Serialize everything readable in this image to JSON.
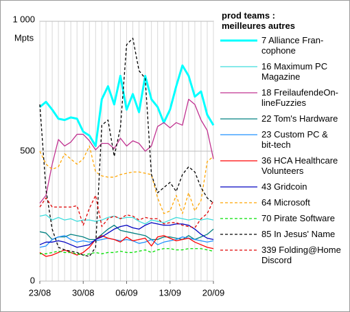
{
  "chart_data": {
    "type": "line",
    "legend_title": "prod teams :\nmeilleures autres",
    "y_unit": "Mpts",
    "categories": [
      "23/08",
      null,
      null,
      null,
      null,
      null,
      null,
      "30/08",
      null,
      null,
      null,
      null,
      null,
      null,
      "06/09",
      null,
      null,
      null,
      null,
      null,
      null,
      "13/09",
      null,
      null,
      null,
      null,
      null,
      null,
      "20/09"
    ],
    "ylim": [
      0,
      1000
    ],
    "yticks": [
      0,
      500,
      {
        "value": 1000,
        "label": "1 000"
      }
    ],
    "grid": true,
    "legend": "right",
    "series": [
      {
        "name": "7 Alliance Fran-\ncophone",
        "color": "#00ffff",
        "width": 3,
        "dash": false,
        "values": [
          670,
          690,
          660,
          625,
          620,
          630,
          625,
          575,
          560,
          520,
          700,
          750,
          680,
          790,
          660,
          720,
          650,
          790,
          700,
          670,
          610,
          660,
          750,
          830,
          790,
          710,
          730,
          640,
          600
        ]
      },
      {
        "name": "16 Maximum PC\nMagazine",
        "color": "#3cdcdc",
        "width": 1.3,
        "dash": false,
        "values": [
          250,
          255,
          235,
          245,
          235,
          240,
          230,
          235,
          235,
          230,
          235,
          245,
          250,
          240,
          245,
          245,
          230,
          220,
          235,
          230,
          225,
          235,
          245,
          240,
          235,
          240,
          235,
          240,
          235
        ]
      },
      {
        "name": "18 FreilaufendeOn-\nlineFuzzies",
        "color": "#c0308f",
        "width": 1.3,
        "dash": false,
        "values": [
          300,
          330,
          450,
          545,
          520,
          535,
          565,
          565,
          540,
          505,
          530,
          530,
          510,
          550,
          520,
          540,
          530,
          500,
          520,
          595,
          610,
          590,
          610,
          600,
          700,
          680,
          620,
          580,
          470
        ]
      },
      {
        "name": "22 Tom's Hardware",
        "color": "#008080",
        "width": 1.3,
        "dash": false,
        "values": [
          190,
          185,
          160,
          170,
          170,
          180,
          175,
          170,
          160,
          160,
          180,
          200,
          215,
          195,
          190,
          185,
          180,
          175,
          160,
          160,
          170,
          170,
          165,
          160,
          175,
          160,
          170,
          180,
          200
        ]
      },
      {
        "name": "23 Custom PC &\nbit-tech",
        "color": "#1e90ff",
        "width": 1.3,
        "dash": false,
        "values": [
          130,
          135,
          160,
          170,
          175,
          160,
          150,
          155,
          150,
          155,
          160,
          165,
          160,
          155,
          160,
          155,
          145,
          150,
          160,
          140,
          150,
          155,
          160,
          170,
          165,
          160,
          155,
          150,
          155
        ]
      },
      {
        "name": "36 HCA Healthcare\nVolunteers",
        "color": "#ff0000",
        "width": 1.3,
        "dash": false,
        "values": [
          110,
          95,
          100,
          110,
          120,
          110,
          100,
          110,
          130,
          160,
          175,
          165,
          160,
          150,
          170,
          155,
          160,
          165,
          135,
          170,
          175,
          165,
          155,
          160,
          165,
          150,
          140,
          130,
          125
        ]
      },
      {
        "name": "43 Gridcoin",
        "color": "#0000c0",
        "width": 1.3,
        "dash": false,
        "values": [
          140,
          150,
          150,
          155,
          150,
          140,
          130,
          135,
          140,
          160,
          170,
          185,
          200,
          210,
          215,
          205,
          200,
          215,
          225,
          220,
          215,
          215,
          220,
          220,
          215,
          200,
          180,
          165,
          160
        ]
      },
      {
        "name": "64 Microsoft",
        "color": "#ffa500",
        "width": 1.3,
        "dash": true,
        "values": [
          500,
          450,
          430,
          440,
          490,
          470,
          450,
          470,
          520,
          420,
          405,
          400,
          400,
          410,
          415,
          420,
          420,
          415,
          410,
          320,
          260,
          270,
          330,
          260,
          340,
          270,
          310,
          460,
          480
        ]
      },
      {
        "name": "70 Pirate Software",
        "color": "#00e000",
        "width": 1.3,
        "dash": true,
        "values": [
          105,
          105,
          110,
          115,
          110,
          110,
          105,
          100,
          105,
          110,
          105,
          110,
          110,
          115,
          110,
          110,
          115,
          120,
          110,
          120,
          125,
          125,
          120,
          120,
          125,
          125,
          125,
          120,
          115
        ]
      },
      {
        "name": "85 In Jesus' Name",
        "color": "#000000",
        "width": 1.3,
        "dash": true,
        "values": [
          680,
          350,
          200,
          130,
          120,
          115,
          110,
          100,
          95,
          130,
          600,
          620,
          480,
          590,
          910,
          935,
          810,
          780,
          410,
          340,
          360,
          380,
          345,
          410,
          440,
          420,
          360,
          320,
          300
        ]
      },
      {
        "name": "339 Folding@Home\nDiscord",
        "color": "#e00000",
        "width": 1.3,
        "dash": true,
        "values": [
          285,
          320,
          285,
          285,
          285,
          285,
          290,
          215,
          280,
          330,
          210,
          240,
          250,
          240,
          255,
          250,
          235,
          245,
          240,
          240,
          220,
          225,
          225,
          215,
          210,
          205,
          240,
          260,
          310
        ]
      }
    ]
  }
}
